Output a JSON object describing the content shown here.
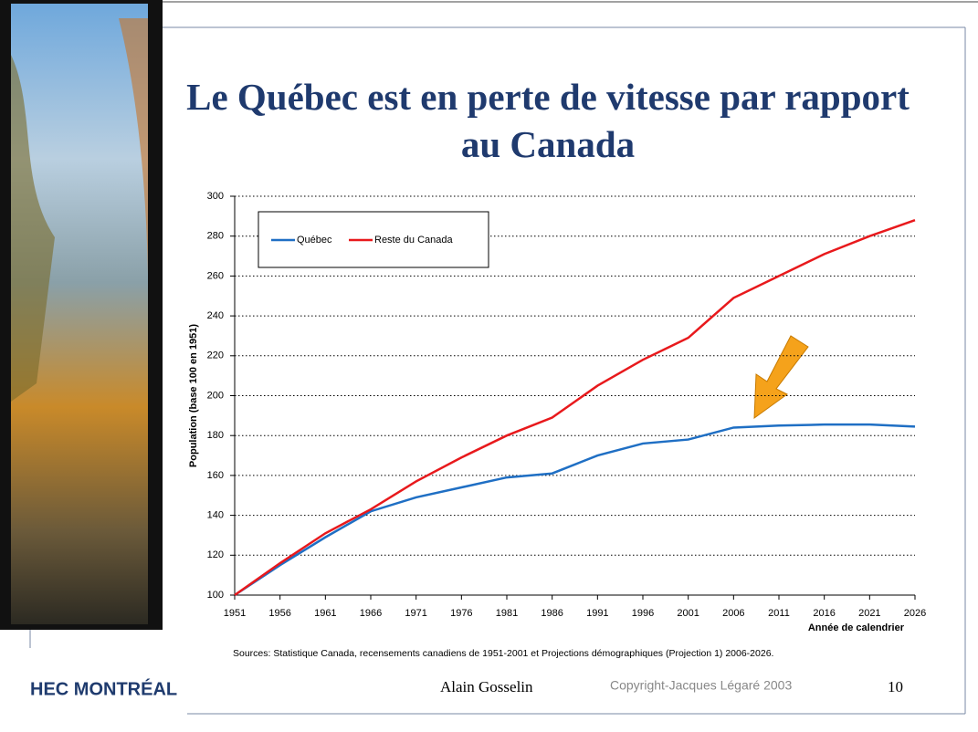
{
  "chart_data": {
    "type": "line",
    "title": "Le Québec est en perte de vitesse par rapport au Canada",
    "ylabel": "Population (base 100 en 1951)",
    "xlabel": "Année de calendrier",
    "x": [
      1951,
      1956,
      1961,
      1966,
      1971,
      1976,
      1981,
      1986,
      1991,
      1996,
      2001,
      2006,
      2011,
      2016,
      2021,
      2026
    ],
    "series": [
      {
        "name": "Québec",
        "color": "#1f6fc4",
        "values": [
          100,
          115,
          129,
          142,
          149,
          154,
          159,
          161,
          170,
          176,
          178,
          184,
          185,
          185.5,
          185.5,
          184.5
        ]
      },
      {
        "name": "Reste du Canada",
        "color": "#e8191c",
        "values": [
          100,
          116,
          131,
          143,
          157,
          169,
          180,
          189,
          205,
          218,
          229,
          249,
          260,
          271,
          280,
          288
        ]
      }
    ],
    "xlim": [
      1951,
      2026
    ],
    "xticks": [
      1951,
      1956,
      1961,
      1966,
      1971,
      1976,
      1981,
      1986,
      1991,
      1996,
      2001,
      2006,
      2011,
      2016,
      2021,
      2026
    ],
    "ylim": [
      100,
      300
    ],
    "yticks": [
      100,
      120,
      140,
      160,
      180,
      200,
      220,
      240,
      260,
      280,
      300
    ],
    "grid": true,
    "legend": "upper left"
  },
  "slide": {
    "source": "Sources: Statistique Canada, recensements canadiens de 1951-2001 et Projections démographiques (Projection 1) 2006-2026.",
    "logo": "HEC MONTRÉAL",
    "author": "Alain Gosselin",
    "copyright": "Copyright-Jacques Légaré 2003",
    "page": "10"
  }
}
